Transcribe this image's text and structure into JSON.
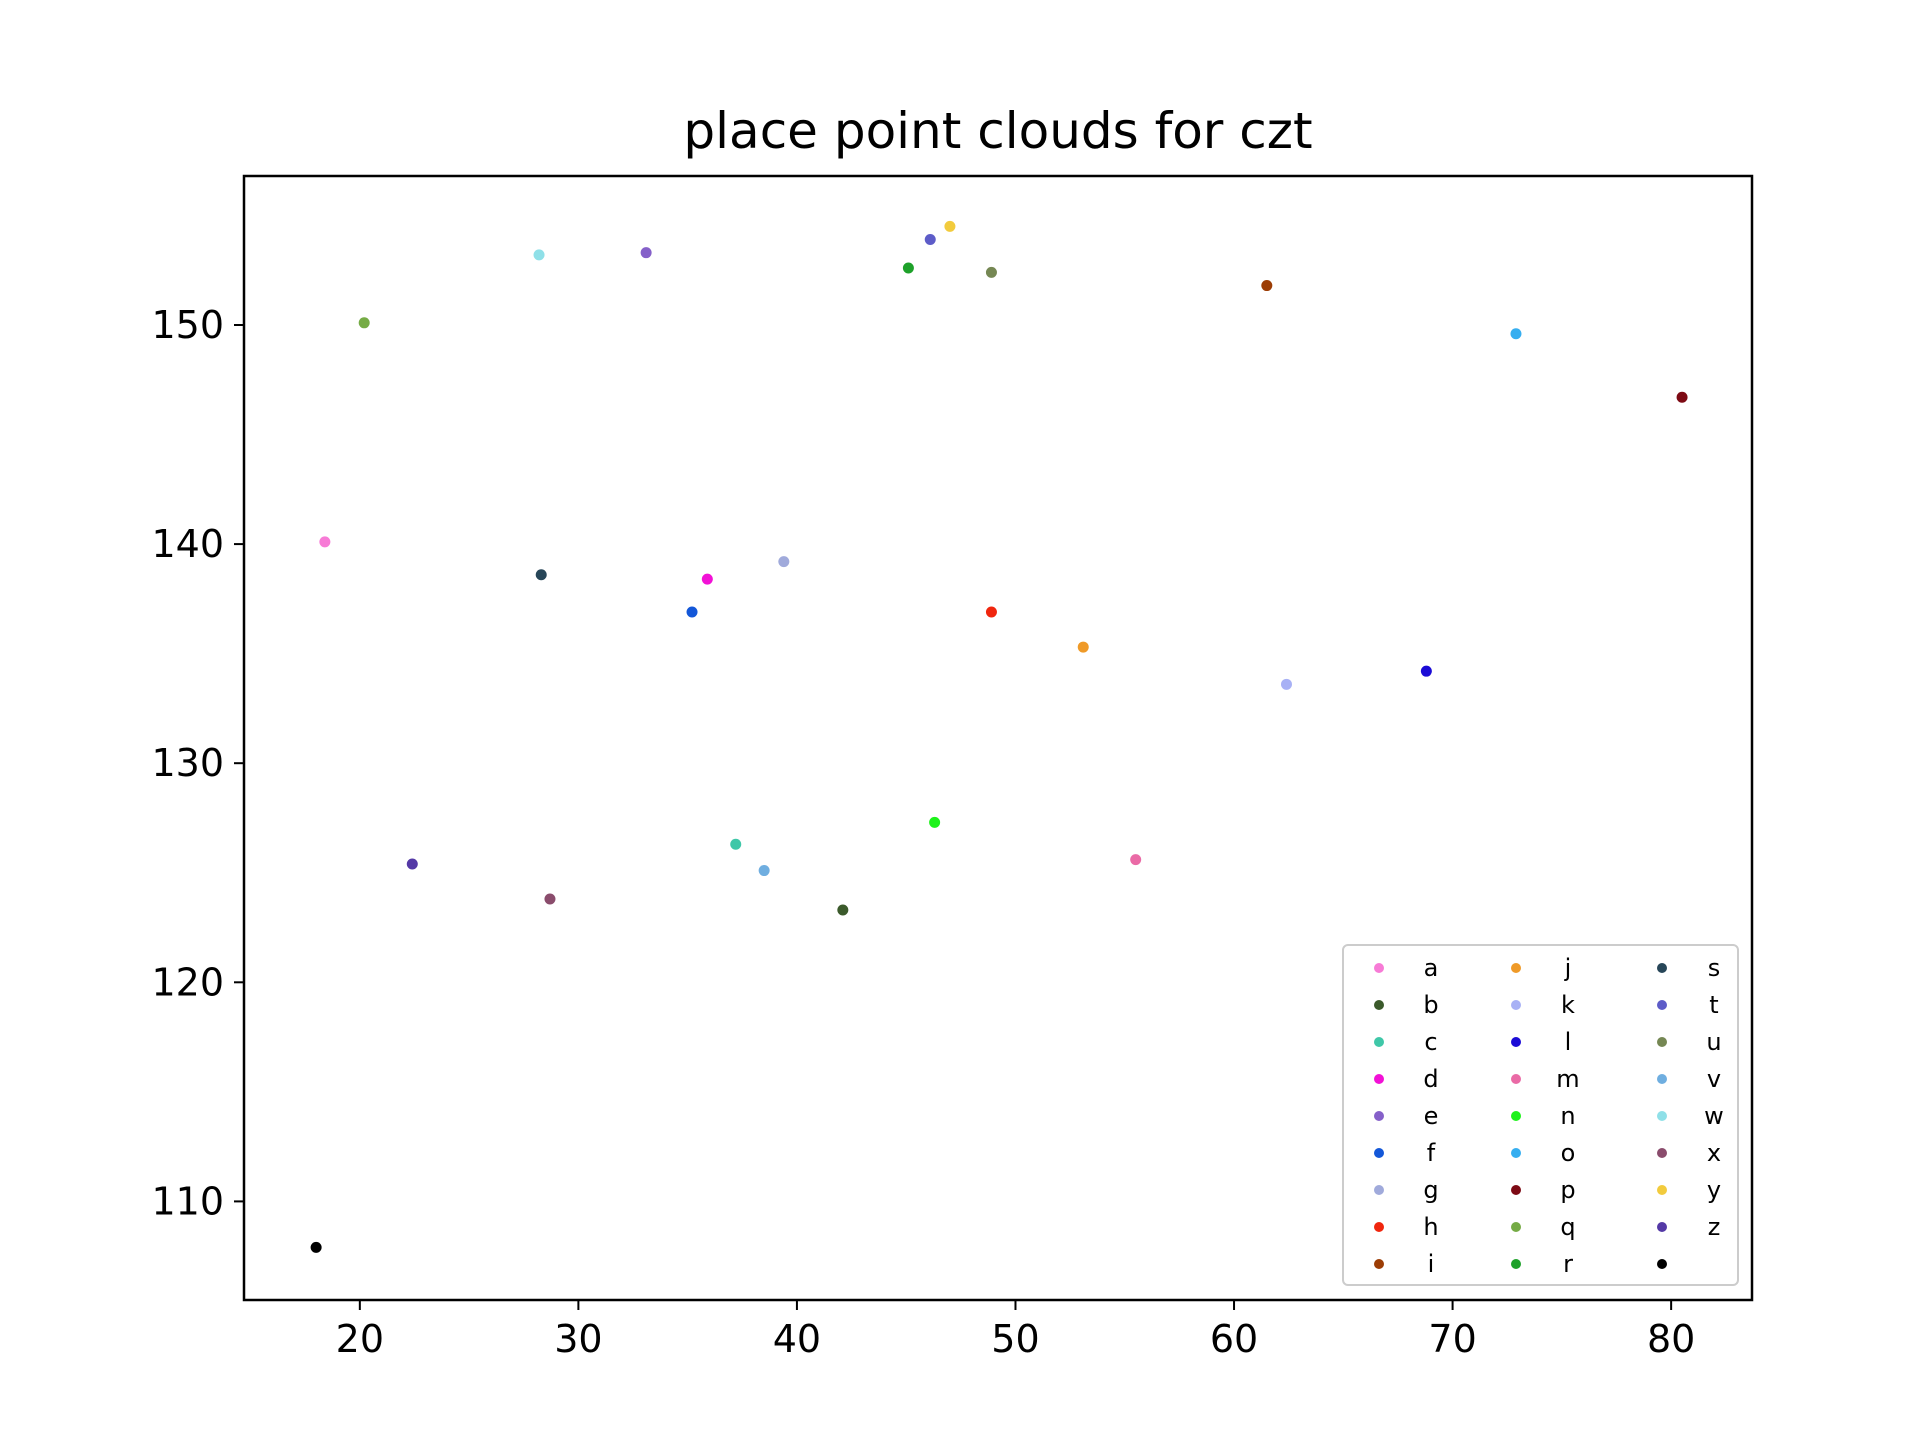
{
  "chart_data": {
    "type": "scatter",
    "title": "place point clouds for czt",
    "xlabel": "",
    "ylabel": "",
    "xlim": [
      14.7,
      83.7
    ],
    "ylim": [
      105.5,
      156.8
    ],
    "xticks": [
      20,
      30,
      40,
      50,
      60,
      70,
      80
    ],
    "yticks": [
      110,
      120,
      130,
      140,
      150
    ],
    "grid": false,
    "legend_position": "lower right",
    "legend_columns": 3,
    "series": [
      {
        "name": "a",
        "color": "#f77bd6",
        "x": 18.4,
        "y": 140.1
      },
      {
        "name": "b",
        "color": "#3b5a2b",
        "x": 42.1,
        "y": 123.3
      },
      {
        "name": "c",
        "color": "#3fc7a8",
        "x": 37.2,
        "y": 126.3
      },
      {
        "name": "d",
        "color": "#f211d6",
        "x": 35.9,
        "y": 138.4
      },
      {
        "name": "e",
        "color": "#8560c9",
        "x": 33.1,
        "y": 153.3
      },
      {
        "name": "f",
        "color": "#1357d8",
        "x": 35.2,
        "y": 136.9
      },
      {
        "name": "g",
        "color": "#a0aadb",
        "x": 39.4,
        "y": 139.2
      },
      {
        "name": "h",
        "color": "#f0260e",
        "x": 48.9,
        "y": 136.9
      },
      {
        "name": "i",
        "color": "#9c3d05",
        "x": 61.5,
        "y": 151.8
      },
      {
        "name": "j",
        "color": "#ef9a28",
        "x": 53.1,
        "y": 135.3
      },
      {
        "name": "k",
        "color": "#a8b1f5",
        "x": 62.4,
        "y": 133.6
      },
      {
        "name": "l",
        "color": "#1b0bd6",
        "x": 68.8,
        "y": 134.2
      },
      {
        "name": "m",
        "color": "#ea6aa6",
        "x": 55.5,
        "y": 125.6
      },
      {
        "name": "n",
        "color": "#1df21a",
        "x": 46.3,
        "y": 127.3
      },
      {
        "name": "o",
        "color": "#36aef0",
        "x": 72.9,
        "y": 149.6
      },
      {
        "name": "p",
        "color": "#7d0a14",
        "x": 80.5,
        "y": 146.7
      },
      {
        "name": "q",
        "color": "#75ab45",
        "x": 20.2,
        "y": 150.1
      },
      {
        "name": "r",
        "color": "#1ea12a",
        "x": 45.1,
        "y": 152.6
      },
      {
        "name": "s",
        "color": "#274658",
        "x": 28.3,
        "y": 138.6
      },
      {
        "name": "t",
        "color": "#5d5cc8",
        "x": 46.1,
        "y": 153.9
      },
      {
        "name": "u",
        "color": "#758753",
        "x": 48.9,
        "y": 152.4
      },
      {
        "name": "v",
        "color": "#6faee0",
        "x": 38.5,
        "y": 125.1
      },
      {
        "name": "w",
        "color": "#8fe0e8",
        "x": 28.2,
        "y": 153.2
      },
      {
        "name": "x",
        "color": "#8a4c6c",
        "x": 28.7,
        "y": 123.8
      },
      {
        "name": "y",
        "color": "#f2cb3d",
        "x": 47.0,
        "y": 154.5
      },
      {
        "name": "z",
        "color": "#5439a6",
        "x": 22.4,
        "y": 125.4
      },
      {
        "name": "",
        "color": "#000000",
        "x": 18.0,
        "y": 107.9
      }
    ]
  }
}
